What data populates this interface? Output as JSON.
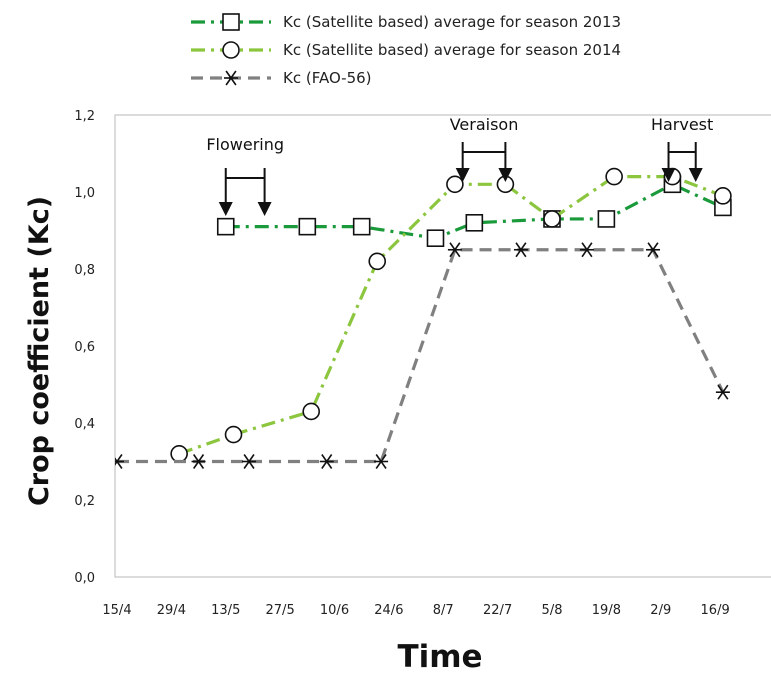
{
  "chart_data": {
    "type": "line",
    "ylabel": "Crop coefficient (Kc)",
    "xlabel": "Time",
    "x_ticks": [
      "15/4",
      "29/4",
      "13/5",
      "27/5",
      "10/6",
      "24/6",
      "8/7",
      "22/7",
      "5/8",
      "19/8",
      "2/9",
      "16/9"
    ],
    "y_ticks": [
      "0,0",
      "0,2",
      "0,4",
      "0,6",
      "0,8",
      "1,0",
      "1,2"
    ],
    "ylim": [
      0,
      1.2
    ],
    "xlim_days": [
      0,
      168
    ],
    "grid": false,
    "legend_position": "top",
    "series": [
      {
        "name": "Kc (Satellite based) average for season 2013",
        "color": "#1a9a3a",
        "marker": "square",
        "dash": "dash-dot",
        "points": [
          {
            "x": "13/5",
            "y": 0.91
          },
          {
            "x": "3/6",
            "y": 0.91
          },
          {
            "x": "17/6",
            "y": 0.91
          },
          {
            "x": "6/7",
            "y": 0.88
          },
          {
            "x": "16/7",
            "y": 0.92
          },
          {
            "x": "5/8",
            "y": 0.93
          },
          {
            "x": "19/8",
            "y": 0.93
          },
          {
            "x": "5/9",
            "y": 1.02
          },
          {
            "x": "18/9",
            "y": 0.96
          }
        ]
      },
      {
        "name": "Kc (Satellite based) average for season 2014",
        "color": "#8cc63f",
        "marker": "circle",
        "dash": "dash-dot",
        "points": [
          {
            "x": "1/5",
            "y": 0.32
          },
          {
            "x": "15/5",
            "y": 0.37
          },
          {
            "x": "4/6",
            "y": 0.43
          },
          {
            "x": "21/6",
            "y": 0.82
          },
          {
            "x": "11/7",
            "y": 1.02
          },
          {
            "x": "24/7",
            "y": 1.02
          },
          {
            "x": "5/8",
            "y": 0.93
          },
          {
            "x": "21/8",
            "y": 1.04
          },
          {
            "x": "5/9",
            "y": 1.04
          },
          {
            "x": "18/9",
            "y": 0.99
          }
        ]
      },
      {
        "name": "Kc (FAO-56)",
        "color": "#808080",
        "marker": "asterisk",
        "dash": "dash",
        "points": [
          {
            "x": "15/4",
            "y": 0.3
          },
          {
            "x": "6/5",
            "y": 0.3
          },
          {
            "x": "19/5",
            "y": 0.3
          },
          {
            "x": "8/6",
            "y": 0.3
          },
          {
            "x": "22/6",
            "y": 0.3
          },
          {
            "x": "11/7",
            "y": 0.85
          },
          {
            "x": "28/7",
            "y": 0.85
          },
          {
            "x": "14/8",
            "y": 0.85
          },
          {
            "x": "31/8",
            "y": 0.85
          },
          {
            "x": "18/9",
            "y": 0.48
          }
        ]
      }
    ],
    "annotations": [
      {
        "label": "Flowering",
        "from": "13/5",
        "to": "23/5"
      },
      {
        "label": "Veraison",
        "from": "13/7",
        "to": "24/7"
      },
      {
        "label": "Harvest",
        "from": "4/9",
        "to": "11/9"
      }
    ]
  }
}
